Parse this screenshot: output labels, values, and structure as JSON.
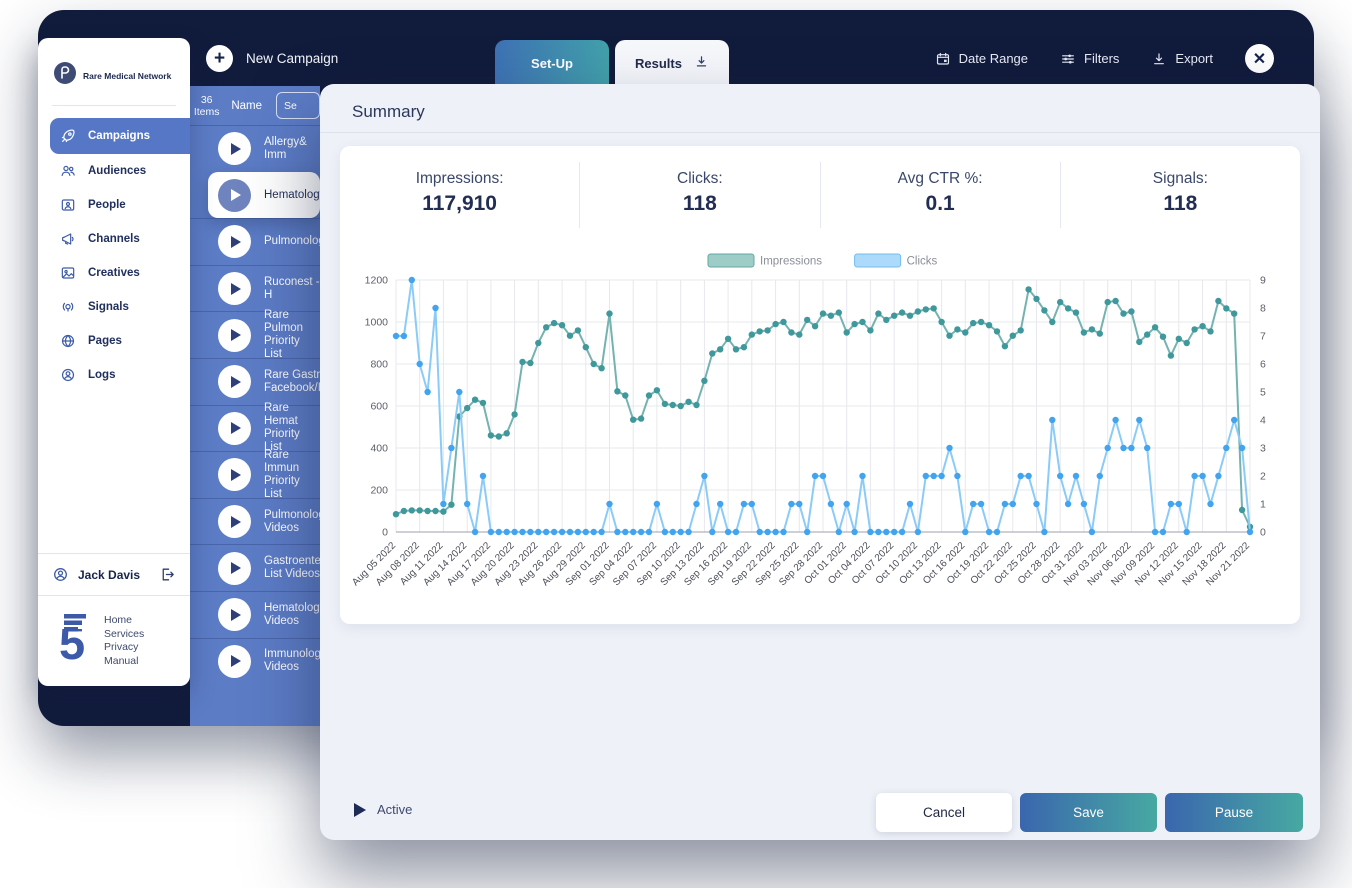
{
  "colors": {
    "frame_navy": "#111B3C",
    "panel_blue": "#5C7CC6",
    "active_nav_blue": "#5677C5",
    "modal_bg": "#EEF1F8",
    "button_gradient_start": "#3A66AE",
    "button_gradient_end": "#47A9A2",
    "impressions_teal": "#5FA8A8",
    "clicks_blue": "#6FBEF5"
  },
  "topbar": {
    "new_campaign_label": "New Campaign",
    "tabs": [
      {
        "label": "Set-Up",
        "active": true
      },
      {
        "label": "Results",
        "active": false
      }
    ],
    "actions": [
      {
        "label": "Date Range",
        "icon": "calendar-icon",
        "name": "date-range-button"
      },
      {
        "label": "Filters",
        "icon": "filters-icon",
        "name": "filters-button"
      },
      {
        "label": "Export",
        "icon": "export-icon",
        "name": "export-button"
      }
    ]
  },
  "sidebar": {
    "brand": "Rare Medical Network",
    "items": [
      {
        "label": "Campaigns",
        "icon": "rocket-icon",
        "active": true
      },
      {
        "label": "Audiences",
        "icon": "users-icon",
        "active": false
      },
      {
        "label": "People",
        "icon": "id-card-icon",
        "active": false
      },
      {
        "label": "Channels",
        "icon": "megaphone-icon",
        "active": false
      },
      {
        "label": "Creatives",
        "icon": "image-icon",
        "active": false
      },
      {
        "label": "Signals",
        "icon": "signal-icon",
        "active": false
      },
      {
        "label": "Pages",
        "icon": "globe-icon",
        "active": false
      },
      {
        "label": "Logs",
        "icon": "user-circle-icon",
        "active": false
      }
    ],
    "user": {
      "name": "Jack Davis"
    },
    "footer_links": [
      "Home",
      "Services",
      "Privacy",
      "Manual"
    ]
  },
  "list": {
    "count": "36",
    "count_caption": "Items",
    "name_header": "Name",
    "search_stub": "Se",
    "rows": [
      {
        "lines": [
          "Allergy& Imm"
        ],
        "selected": false
      },
      {
        "lines": [
          "Hematology"
        ],
        "selected": true
      },
      {
        "lines": [
          "Pulmonolog"
        ],
        "selected": false
      },
      {
        "lines": [
          "Ruconest - H"
        ],
        "selected": false
      },
      {
        "lines": [
          "Rare Pulmon",
          "Priority List"
        ],
        "selected": false
      },
      {
        "lines": [
          "Rare Gastro",
          "Facebook/In"
        ],
        "selected": false
      },
      {
        "lines": [
          "Rare Hemat",
          "Priority List"
        ],
        "selected": false
      },
      {
        "lines": [
          "Rare Immun",
          "Priority List"
        ],
        "selected": false
      },
      {
        "lines": [
          "Pulmonolog",
          "Videos"
        ],
        "selected": false
      },
      {
        "lines": [
          "Gastroenter",
          "List Videos"
        ],
        "selected": false
      },
      {
        "lines": [
          "Hematology",
          "Videos"
        ],
        "selected": false
      },
      {
        "lines": [
          "Immunology",
          "Videos"
        ],
        "selected": false
      }
    ]
  },
  "modal": {
    "title": "Summary",
    "stats": [
      {
        "label": "Impressions:",
        "value": "117,910"
      },
      {
        "label": "Clicks:",
        "value": "118"
      },
      {
        "label": "Avg CTR %:",
        "value": "0.1"
      },
      {
        "label": "Signals:",
        "value": "118"
      }
    ],
    "status_label": "Active",
    "buttons": [
      {
        "label": "Cancel"
      },
      {
        "label": "Save"
      },
      {
        "label": "Pause"
      }
    ]
  },
  "chart_data": {
    "type": "line",
    "x_tick_every": 3,
    "x_labels": [
      "Aug 05 2022",
      "Aug 08 2022",
      "Aug 11 2022",
      "Aug 14 2022",
      "Aug 17 2022",
      "Aug 20 2022",
      "Aug 23 2022",
      "Aug 26 2022",
      "Aug 29 2022",
      "Sep 01 2022",
      "Sep 04 2022",
      "Sep 07 2022",
      "Sep 10 2022",
      "Sep 13 2022",
      "Sep 16 2022",
      "Sep 19 2022",
      "Sep 22 2022",
      "Sep 25 2022",
      "Sep 28 2022",
      "Oct 01 2022",
      "Oct 04 2022",
      "Oct 07 2022",
      "Oct 10 2022",
      "Oct 13 2022",
      "Oct 16 2022",
      "Oct 19 2022",
      "Oct 22 2022",
      "Oct 25 2022",
      "Oct 28 2022",
      "Oct 31 2022",
      "Nov 03 2022",
      "Nov 06 2022",
      "Nov 09 2022",
      "Nov 12 2022",
      "Nov 15 2022",
      "Nov 18 2022",
      "Nov 21 2022"
    ],
    "y_left": {
      "min": 0,
      "max": 1200,
      "ticks": [
        0,
        200,
        400,
        600,
        800,
        1000,
        1200
      ]
    },
    "y_right": {
      "min": 0,
      "max": 9,
      "ticks": [
        0,
        1,
        2,
        3,
        4,
        5,
        6,
        7,
        8,
        9
      ]
    },
    "grid": true,
    "legend_position": "top-center",
    "series": [
      {
        "name": "Impressions",
        "axis": "left",
        "line_color": "#74B3B0",
        "dot_color": "#3F989B",
        "swatch_fill": "#9ECDC7",
        "swatch_border": "#63A7A5",
        "values": [
          85,
          100,
          103,
          103,
          100,
          100,
          97,
          130,
          550,
          590,
          630,
          615,
          460,
          455,
          470,
          560,
          810,
          805,
          900,
          975,
          995,
          985,
          935,
          960,
          880,
          800,
          780,
          1040,
          670,
          650,
          535,
          540,
          650,
          675,
          610,
          605,
          600,
          620,
          605,
          720,
          850,
          870,
          920,
          870,
          880,
          940,
          955,
          960,
          990,
          1000,
          950,
          940,
          1010,
          980,
          1040,
          1030,
          1045,
          950,
          990,
          1000,
          960,
          1040,
          1010,
          1030,
          1045,
          1030,
          1050,
          1060,
          1065,
          1000,
          935,
          965,
          950,
          995,
          1000,
          985,
          955,
          885,
          935,
          960,
          1155,
          1110,
          1055,
          1000,
          1095,
          1065,
          1045,
          950,
          965,
          945,
          1095,
          1100,
          1040,
          1050,
          905,
          940,
          975,
          930,
          840,
          920,
          900,
          965,
          980,
          955,
          1100,
          1065,
          1040,
          105,
          25
        ]
      },
      {
        "name": "Clicks",
        "axis": "right",
        "line_color": "#8BCBF8",
        "dot_color": "#42A4EF",
        "swatch_fill": "#ABDAFA",
        "swatch_border": "#74BCEF",
        "values": [
          7,
          7,
          9,
          6,
          5,
          8,
          1,
          3,
          5,
          1,
          0,
          2,
          0,
          0,
          0,
          0,
          0,
          0,
          0,
          0,
          0,
          0,
          0,
          0,
          0,
          0,
          0,
          1,
          0,
          0,
          0,
          0,
          0,
          1,
          0,
          0,
          0,
          0,
          1,
          2,
          0,
          1,
          0,
          0,
          1,
          1,
          0,
          0,
          0,
          0,
          1,
          1,
          0,
          2,
          2,
          1,
          0,
          1,
          0,
          2,
          0,
          0,
          0,
          0,
          0,
          1,
          0,
          2,
          2,
          2,
          3,
          2,
          0,
          1,
          1,
          0,
          0,
          1,
          1,
          2,
          2,
          1,
          0,
          4,
          2,
          1,
          2,
          1,
          0,
          2,
          3,
          4,
          3,
          3,
          4,
          3,
          0,
          0,
          1,
          1,
          0,
          2,
          2,
          1,
          2,
          3,
          4,
          3,
          0
        ]
      }
    ]
  }
}
